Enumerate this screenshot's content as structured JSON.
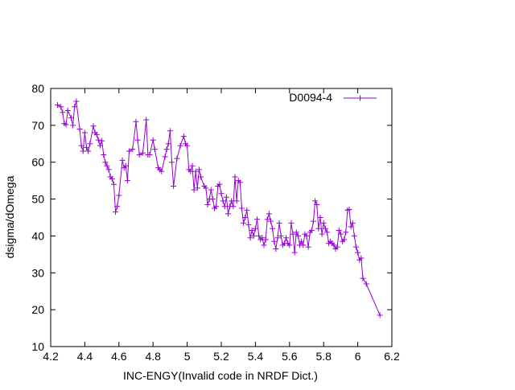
{
  "chart_data": {
    "type": "line",
    "title": "",
    "xlabel": "INC-ENGY(Invalid code in NRDF Dict.)",
    "ylabel": "dsigma/dOmega",
    "xlim": [
      4.2,
      6.2
    ],
    "ylim": [
      10,
      80
    ],
    "xticks": [
      4.2,
      4.4,
      4.6,
      4.8,
      5.0,
      5.2,
      5.4,
      5.6,
      5.8,
      6.0,
      6.2
    ],
    "xtick_labels": [
      "4.2",
      "4.4",
      "4.6",
      "4.8",
      "5",
      "5.2",
      "5.4",
      "5.6",
      "5.8",
      "6",
      "6.2"
    ],
    "yticks": [
      10,
      20,
      30,
      40,
      50,
      60,
      70,
      80
    ],
    "ytick_labels": [
      "10",
      "20",
      "30",
      "40",
      "50",
      "60",
      "70",
      "80"
    ],
    "grid": false,
    "legend_position": "top-right",
    "colors": {
      "series": "#9400d3",
      "axis": "#000000"
    },
    "series": [
      {
        "name": "D0094-4",
        "marker": "plus",
        "points": [
          [
            4.24,
            75.5
          ],
          [
            4.26,
            75.0
          ],
          [
            4.27,
            73.5
          ],
          [
            4.28,
            70.5
          ],
          [
            4.29,
            70.2
          ],
          [
            4.3,
            74.0
          ],
          [
            4.32,
            72.0
          ],
          [
            4.33,
            70.0
          ],
          [
            4.34,
            75.0
          ],
          [
            4.35,
            76.5
          ],
          [
            4.37,
            69.0
          ],
          [
            4.38,
            64.5
          ],
          [
            4.39,
            63.0
          ],
          [
            4.4,
            68.0
          ],
          [
            4.41,
            64.0
          ],
          [
            4.42,
            63.0
          ],
          [
            4.43,
            65.0
          ],
          [
            4.45,
            69.8
          ],
          [
            4.46,
            68.0
          ],
          [
            4.47,
            67.5
          ],
          [
            4.48,
            66.0
          ],
          [
            4.49,
            64.5
          ],
          [
            4.5,
            65.8
          ],
          [
            4.51,
            62.0
          ],
          [
            4.52,
            60.0
          ],
          [
            4.53,
            59.0
          ],
          [
            4.54,
            58.0
          ],
          [
            4.55,
            56.0
          ],
          [
            4.56,
            55.5
          ],
          [
            4.57,
            54.0
          ],
          [
            4.58,
            46.5
          ],
          [
            4.59,
            48.0
          ],
          [
            4.6,
            51.0
          ],
          [
            4.62,
            60.5
          ],
          [
            4.63,
            58.5
          ],
          [
            4.64,
            59.0
          ],
          [
            4.65,
            55.0
          ],
          [
            4.66,
            63.0
          ],
          [
            4.68,
            63.5
          ],
          [
            4.7,
            71.0
          ],
          [
            4.71,
            66.0
          ],
          [
            4.72,
            62.0
          ],
          [
            4.74,
            62.5
          ],
          [
            4.76,
            71.5
          ],
          [
            4.77,
            62.0
          ],
          [
            4.78,
            62.0
          ],
          [
            4.8,
            66.0
          ],
          [
            4.81,
            63.5
          ],
          [
            4.83,
            58.5
          ],
          [
            4.84,
            58.0
          ],
          [
            4.85,
            57.5
          ],
          [
            4.87,
            61.5
          ],
          [
            4.88,
            63.5
          ],
          [
            4.89,
            65.0
          ],
          [
            4.9,
            68.5
          ],
          [
            4.91,
            60.0
          ],
          [
            4.92,
            53.5
          ],
          [
            4.94,
            61.0
          ],
          [
            4.96,
            64.5
          ],
          [
            4.98,
            67.0
          ],
          [
            4.99,
            65.0
          ],
          [
            5.0,
            64.5
          ],
          [
            5.01,
            58.0
          ],
          [
            5.02,
            57.5
          ],
          [
            5.03,
            59.0
          ],
          [
            5.04,
            52.5
          ],
          [
            5.05,
            57.5
          ],
          [
            5.06,
            53.0
          ],
          [
            5.07,
            58.0
          ],
          [
            5.08,
            56.0
          ],
          [
            5.1,
            53.5
          ],
          [
            5.11,
            53.0
          ],
          [
            5.12,
            48.5
          ],
          [
            5.13,
            50.0
          ],
          [
            5.14,
            52.5
          ],
          [
            5.15,
            50.0
          ],
          [
            5.16,
            47.5
          ],
          [
            5.17,
            48.0
          ],
          [
            5.18,
            53.5
          ],
          [
            5.19,
            54.0
          ],
          [
            5.2,
            51.5
          ],
          [
            5.21,
            49.5
          ],
          [
            5.22,
            48.0
          ],
          [
            5.23,
            50.5
          ],
          [
            5.24,
            46.0
          ],
          [
            5.25,
            48.0
          ],
          [
            5.26,
            49.5
          ],
          [
            5.27,
            48.0
          ],
          [
            5.28,
            56.0
          ],
          [
            5.29,
            49.5
          ],
          [
            5.3,
            55.0
          ],
          [
            5.31,
            54.5
          ],
          [
            5.32,
            47.5
          ],
          [
            5.33,
            43.5
          ],
          [
            5.34,
            45.0
          ],
          [
            5.35,
            47.0
          ],
          [
            5.36,
            43.0
          ],
          [
            5.37,
            39.5
          ],
          [
            5.38,
            41.5
          ],
          [
            5.39,
            40.0
          ],
          [
            5.4,
            42.0
          ],
          [
            5.41,
            44.5
          ],
          [
            5.42,
            40.0
          ],
          [
            5.43,
            39.0
          ],
          [
            5.44,
            39.5
          ],
          [
            5.45,
            37.5
          ],
          [
            5.46,
            39.0
          ],
          [
            5.47,
            44.5
          ],
          [
            5.48,
            46.0
          ],
          [
            5.49,
            44.0
          ],
          [
            5.5,
            42.0
          ],
          [
            5.51,
            38.5
          ],
          [
            5.52,
            36.5
          ],
          [
            5.53,
            39.5
          ],
          [
            5.54,
            43.5
          ],
          [
            5.55,
            40.0
          ],
          [
            5.56,
            37.5
          ],
          [
            5.57,
            38.0
          ],
          [
            5.58,
            39.5
          ],
          [
            5.59,
            38.0
          ],
          [
            5.6,
            37.5
          ],
          [
            5.61,
            43.5
          ],
          [
            5.62,
            40.5
          ],
          [
            5.63,
            35.5
          ],
          [
            5.64,
            41.0
          ],
          [
            5.65,
            40.0
          ],
          [
            5.66,
            37.5
          ],
          [
            5.67,
            38.5
          ],
          [
            5.68,
            37.5
          ],
          [
            5.69,
            40.5
          ],
          [
            5.7,
            40.0
          ],
          [
            5.71,
            37.0
          ],
          [
            5.72,
            41.0
          ],
          [
            5.73,
            41.5
          ],
          [
            5.74,
            44.0
          ],
          [
            5.75,
            49.5
          ],
          [
            5.76,
            48.5
          ],
          [
            5.77,
            42.0
          ],
          [
            5.78,
            45.0
          ],
          [
            5.79,
            40.5
          ],
          [
            5.8,
            43.5
          ],
          [
            5.81,
            42.0
          ],
          [
            5.82,
            41.0
          ],
          [
            5.83,
            38.0
          ],
          [
            5.84,
            38.5
          ],
          [
            5.85,
            38.0
          ],
          [
            5.86,
            37.5
          ],
          [
            5.87,
            36.5
          ],
          [
            5.88,
            37.0
          ],
          [
            5.89,
            41.5
          ],
          [
            5.9,
            40.5
          ],
          [
            5.91,
            38.5
          ],
          [
            5.92,
            39.0
          ],
          [
            5.93,
            41.0
          ],
          [
            5.94,
            47.0
          ],
          [
            5.95,
            47.2
          ],
          [
            5.96,
            42.5
          ],
          [
            5.97,
            43.5
          ],
          [
            5.98,
            40.0
          ],
          [
            5.99,
            37.0
          ],
          [
            6.0,
            35.5
          ],
          [
            6.01,
            33.5
          ],
          [
            6.02,
            34.0
          ],
          [
            6.03,
            28.5
          ],
          [
            6.05,
            27.0
          ],
          [
            6.13,
            18.5
          ]
        ]
      }
    ]
  }
}
